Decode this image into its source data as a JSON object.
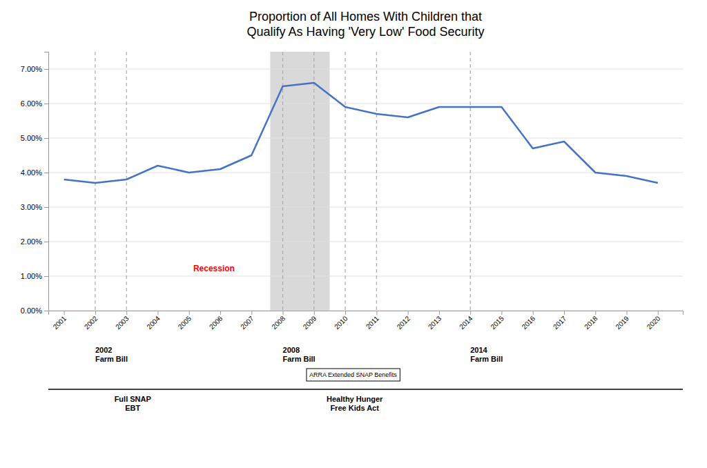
{
  "chart_data": {
    "type": "line",
    "title": "Proportion of All Homes With Children that\nQualify As Having 'Very Low' Food Security",
    "x": [
      2001,
      2002,
      2003,
      2004,
      2005,
      2006,
      2007,
      2008,
      2009,
      2010,
      2011,
      2012,
      2013,
      2014,
      2015,
      2016,
      2017,
      2018,
      2019,
      2020
    ],
    "values": [
      0.038,
      0.037,
      0.038,
      0.042,
      0.04,
      0.041,
      0.045,
      0.065,
      0.066,
      0.059,
      0.057,
      0.056,
      0.059,
      0.059,
      0.059,
      0.047,
      0.049,
      0.04,
      0.039,
      0.037
    ],
    "color": "#4472C4",
    "xlim": [
      2000.5,
      2020.8
    ],
    "xticks": [
      2001,
      2002,
      2003,
      2004,
      2005,
      2006,
      2007,
      2008,
      2009,
      2010,
      2011,
      2012,
      2013,
      2014,
      2015,
      2016,
      2017,
      2018,
      2019,
      2020
    ],
    "ylim": [
      0.0,
      0.075
    ],
    "yticks": [
      {
        "value": 0.0,
        "label": "0.00%"
      },
      {
        "value": 0.01,
        "label": "1.00%"
      },
      {
        "value": 0.02,
        "label": "2.00%"
      },
      {
        "value": 0.03,
        "label": "3.00%"
      },
      {
        "value": 0.04,
        "label": "4.00%"
      },
      {
        "value": 0.05,
        "label": "5.00%"
      },
      {
        "value": 0.06,
        "label": "6.00%"
      },
      {
        "value": 0.07,
        "label": "7.00%"
      }
    ],
    "grid": true,
    "shaded_regions": [
      {
        "start": 2007.6,
        "end": 2009.5,
        "color": "#d9d9d9"
      }
    ],
    "vertical_lines": {
      "x": [
        2002,
        2003,
        2008,
        2009,
        2010,
        2011,
        2014
      ],
      "color": "#aaaaaa",
      "line_style": "dashed"
    },
    "annotations": [
      {
        "text": "Recession",
        "x": 2005.8,
        "y": 0.012,
        "color": "red"
      }
    ],
    "events_below": {
      "farm_bills": [
        {
          "text": "2002\nFarm Bill",
          "x": 2002
        },
        {
          "text": "2008\nFarm Bill",
          "x": 2008
        },
        {
          "text": "2014\nFarm Bill",
          "x": 2014
        }
      ],
      "benefit_extensions": [
        {
          "text": "ARRA Extended SNAP Benefits",
          "x": 2010.25
        }
      ],
      "programs": [
        {
          "text": "Full SNAP\nEBT",
          "x": 2003.2
        },
        {
          "text": "Healthy Hunger\nFree Kids Act",
          "x": 2010.3
        }
      ]
    }
  }
}
